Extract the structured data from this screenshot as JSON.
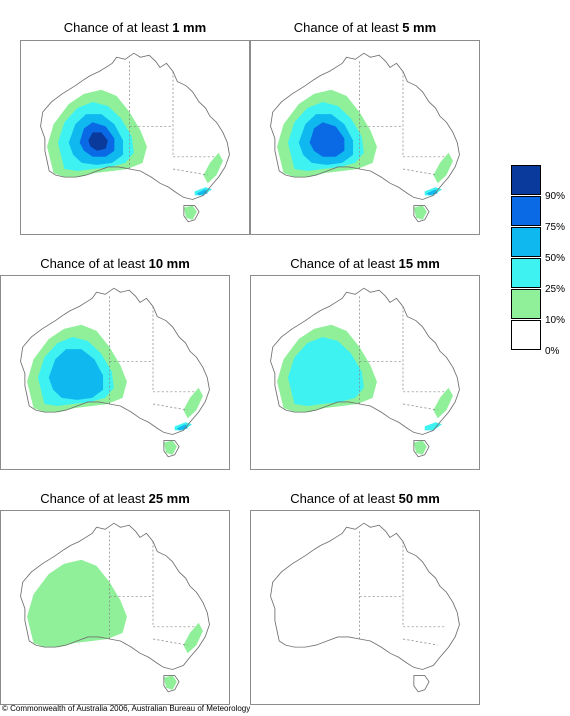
{
  "title_prefix": "Chance of at least",
  "colors": {
    "c90": "#0a3a9c",
    "c75": "#0a6ae6",
    "c50": "#0fb8ee",
    "c25": "#3ef2f2",
    "c10": "#90f09a",
    "c0": "#ffffff",
    "outline": "#707070",
    "border": "#8c8c8c"
  },
  "panels": [
    {
      "amount": "1 mm",
      "levels": [
        "c10",
        "c25",
        "c50",
        "c75",
        "c90"
      ]
    },
    {
      "amount": "5 mm",
      "levels": [
        "c10",
        "c25",
        "c50",
        "c75"
      ]
    },
    {
      "amount": "10 mm",
      "levels": [
        "c10",
        "c25",
        "c50"
      ]
    },
    {
      "amount": "15 mm",
      "levels": [
        "c10",
        "c25"
      ]
    },
    {
      "amount": "25 mm",
      "levels": [
        "c10"
      ]
    },
    {
      "amount": "50 mm",
      "levels": []
    }
  ],
  "legend": {
    "labels": [
      "90%",
      "75%",
      "50%",
      "25%",
      "10%",
      "0%"
    ]
  },
  "footer": "© Commonwealth of Australia 2006, Australian Bureau of Meteorology"
}
